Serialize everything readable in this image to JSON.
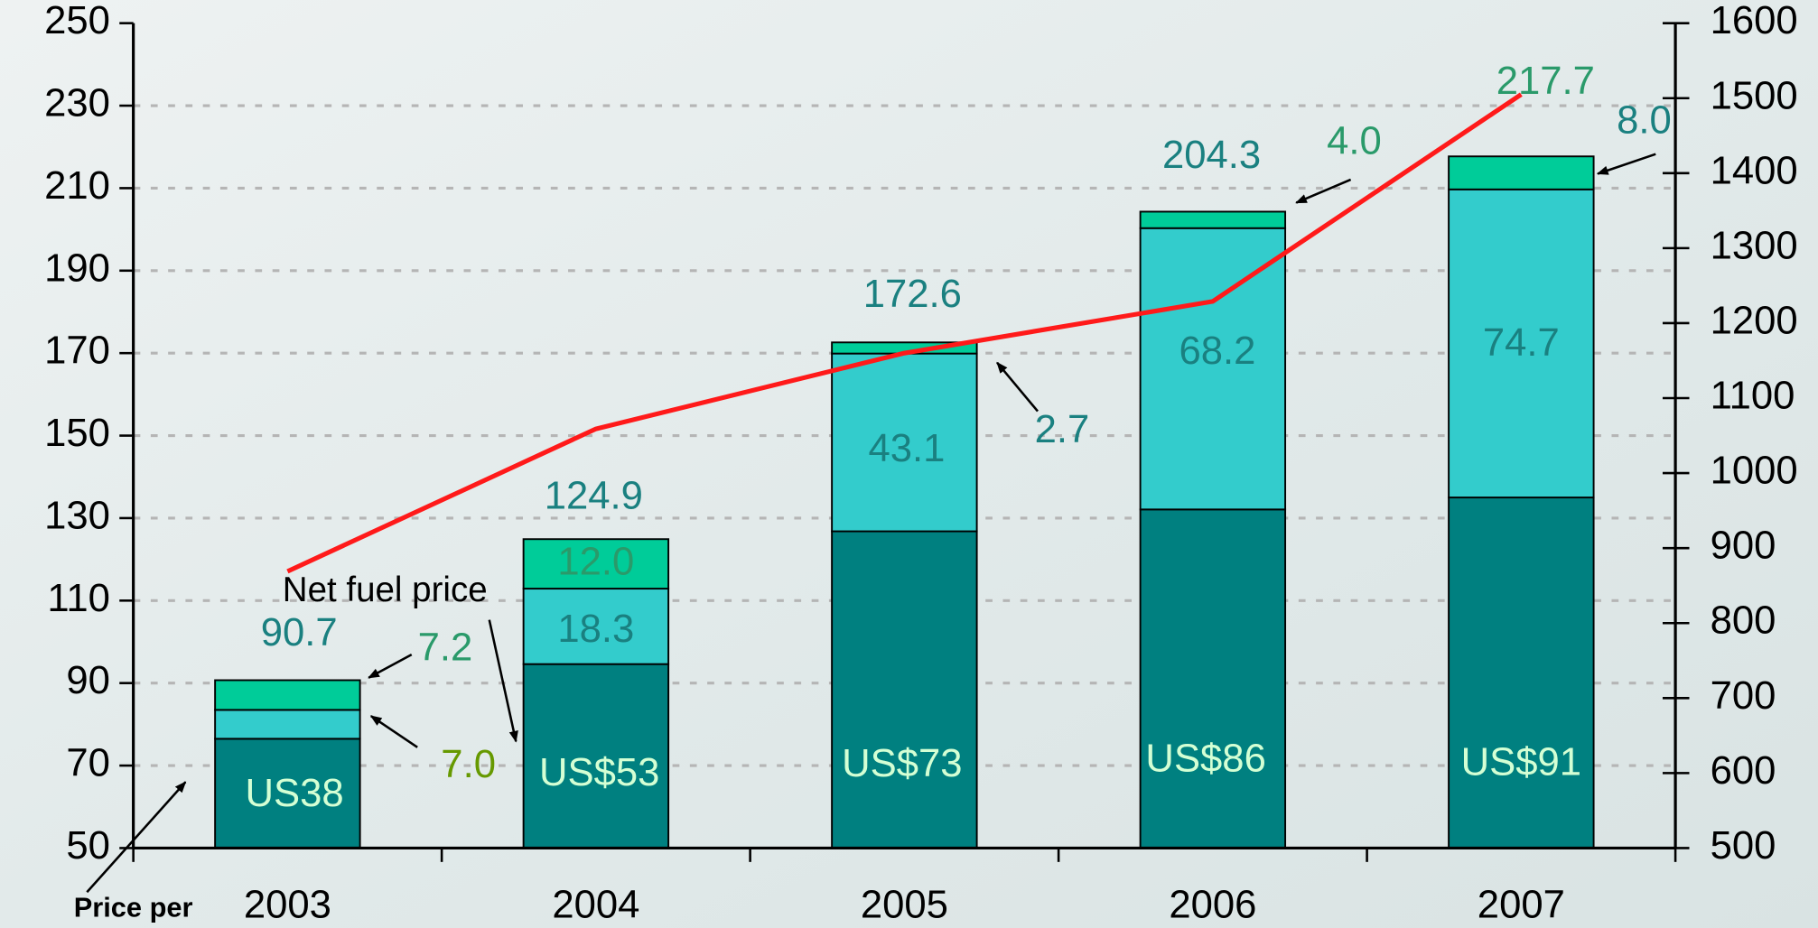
{
  "chart_data": {
    "type": "bar",
    "categories": [
      "2003",
      "2004",
      "2005",
      "2006",
      "2007"
    ],
    "ylim": [
      50,
      250
    ],
    "yticks": [
      50,
      70,
      90,
      110,
      130,
      150,
      170,
      190,
      210,
      230,
      250
    ],
    "y2lim": [
      500,
      1600
    ],
    "y2ticks": [
      500,
      600,
      700,
      800,
      900,
      1000,
      1100,
      1200,
      1300,
      1400,
      1500,
      1600
    ],
    "grid": true,
    "series": [
      {
        "color": "#008080",
        "values": [
          76.5,
          94.6,
          126.8,
          132.1,
          135.0
        ],
        "value_labels": [
          "US38",
          "US$53",
          "US$73",
          "US$86",
          "US$91"
        ]
      },
      {
        "color": "#33cccc",
        "values": [
          7.0,
          18.3,
          43.1,
          68.2,
          74.7
        ],
        "value_labels": [
          "7.0",
          "18.3",
          "43.1",
          "68.2",
          "74.7"
        ]
      },
      {
        "color": "#00cc99",
        "values": [
          7.2,
          12.0,
          2.7,
          4.0,
          8.0
        ],
        "value_labels": [
          "7.2",
          "12.0",
          "2.7",
          "4.0",
          "8.0"
        ]
      },
      {
        "type": "line",
        "axis": "y2",
        "color": "#ff1a1a",
        "values": [
          869,
          1059,
          1160,
          1229,
          1505
        ]
      }
    ],
    "totals": [
      90.7,
      124.9,
      172.6,
      204.3,
      217.7
    ],
    "annotations": [
      "Net fuel price",
      "Price per"
    ]
  }
}
